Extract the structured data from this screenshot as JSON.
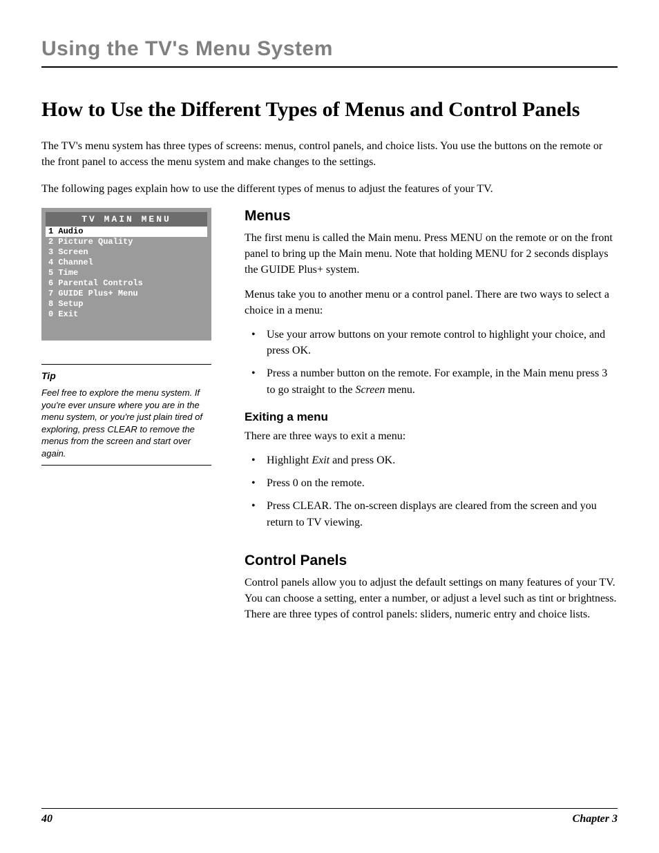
{
  "chapterHead": "Using the TV's Menu System",
  "mainTitle": "How to Use the Different Types of Menus and Control Panels",
  "intro1": "The TV's menu system has three types of screens: menus, control panels, and choice lists. You use the buttons on the remote or the front panel to access the menu system and make changes to the settings.",
  "intro2": "The following pages explain how to use the different types of menus to adjust the features of your TV.",
  "tvMenu": {
    "title": "TV MAIN MENU",
    "items": [
      {
        "n": "1",
        "label": "Audio",
        "sel": true
      },
      {
        "n": "2",
        "label": "Picture Quality",
        "sel": false
      },
      {
        "n": "3",
        "label": "Screen",
        "sel": false
      },
      {
        "n": "4",
        "label": "Channel",
        "sel": false
      },
      {
        "n": "5",
        "label": "Time",
        "sel": false
      },
      {
        "n": "6",
        "label": "Parental Controls",
        "sel": false
      },
      {
        "n": "7",
        "label": "GUIDE Plus+ Menu",
        "sel": false
      },
      {
        "n": "8",
        "label": "Setup",
        "sel": false
      },
      {
        "n": "0",
        "label": "Exit",
        "sel": false
      }
    ],
    "bg": "#9b9b9b",
    "titleBg": "#6d6d6d",
    "selBg": "#ffffff",
    "textColor": "#ffffff"
  },
  "tip": {
    "label": "Tip",
    "text": "Feel free to explore the menu system. If you're ever unsure where you are in the menu system, or you're just plain tired of exploring, press CLEAR to remove the menus from the screen and start over again."
  },
  "menusH": "Menus",
  "menusP1": "The first menu is called the Main menu. Press MENU on the remote or on the front panel to bring up the Main menu. Note that holding MENU for 2 seconds displays the GUIDE Plus+ system.",
  "menusP2": "Menus take you to another menu or a control panel. There are two ways to select a choice in a menu:",
  "menusLi1": "Use your arrow buttons on your remote control to highlight your choice, and press OK.",
  "menusLi2a": "Press a number button on the remote. For example, in the Main menu press 3 to go straight to the ",
  "menusLi2b": "Screen",
  "menusLi2c": " menu.",
  "exitH": "Exiting a menu",
  "exitP": "There are three ways to exit a menu:",
  "exitLi1a": "Highlight ",
  "exitLi1b": "Exit",
  "exitLi1c": " and press OK.",
  "exitLi2": "Press 0 on the remote.",
  "exitLi3": "Press CLEAR. The on-screen displays are cleared from the screen and you return to TV viewing.",
  "cpH": "Control Panels",
  "cpP": "Control panels allow you to adjust the default settings on many features of your TV. You can choose a setting, enter a number, or adjust a level such as tint or brightness. There are three types of control panels: sliders, numeric entry and choice lists.",
  "pageNum": "40",
  "chapterLabel": "Chapter 3"
}
